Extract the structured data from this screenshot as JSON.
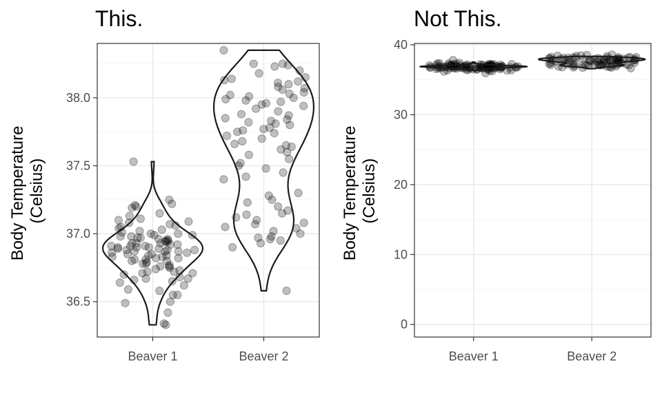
{
  "chart_data": [
    {
      "type": "violin",
      "title": "This.",
      "ylabel_lines": [
        "Body Temperature",
        "(Celsius)"
      ],
      "categories": [
        "Beaver 1",
        "Beaver 2"
      ],
      "ylim": [
        36.24,
        38.4
      ],
      "yticks": [
        36.5,
        37.0,
        37.5,
        38.0
      ],
      "ytick_labels": [
        "36.5",
        "37.0",
        "37.5",
        "38.0"
      ],
      "grid": true,
      "point_color": "#000000",
      "series": [
        {
          "values": [
            36.33,
            36.34,
            36.42,
            36.49,
            36.5,
            36.55,
            36.55,
            36.58,
            36.59,
            36.62,
            36.64,
            36.65,
            36.66,
            36.67,
            36.67,
            36.68,
            36.7,
            36.71,
            36.71,
            36.72,
            36.72,
            36.73,
            36.74,
            36.75,
            36.76,
            36.76,
            36.77,
            36.78,
            36.78,
            36.79,
            36.8,
            36.8,
            36.81,
            36.81,
            36.82,
            36.82,
            36.83,
            36.83,
            36.84,
            36.84,
            36.85,
            36.85,
            36.86,
            36.86,
            36.87,
            36.87,
            36.87,
            36.88,
            36.88,
            36.88,
            36.89,
            36.89,
            36.9,
            36.9,
            36.9,
            36.91,
            36.91,
            36.91,
            36.92,
            36.92,
            36.93,
            36.93,
            36.93,
            36.94,
            36.94,
            36.95,
            36.95,
            36.96,
            36.96,
            36.97,
            36.97,
            36.98,
            36.98,
            36.99,
            36.99,
            37.0,
            37.0,
            37.01,
            37.02,
            37.03,
            37.04,
            37.05,
            37.06,
            37.07,
            37.08,
            37.09,
            37.1,
            37.11,
            37.13,
            37.15,
            37.19,
            37.2,
            37.21,
            37.22,
            37.25,
            37.53
          ]
        },
        {
          "values": [
            36.58,
            36.9,
            36.93,
            36.95,
            36.96,
            36.97,
            36.98,
            37.0,
            37.02,
            37.04,
            37.05,
            37.07,
            37.08,
            37.1,
            37.12,
            37.14,
            37.15,
            37.17,
            37.2,
            37.23,
            37.25,
            37.28,
            37.3,
            37.4,
            37.42,
            37.45,
            37.48,
            37.5,
            37.52,
            37.55,
            37.58,
            37.6,
            37.62,
            37.64,
            37.65,
            37.66,
            37.68,
            37.7,
            37.72,
            37.74,
            37.75,
            37.76,
            37.77,
            37.78,
            37.8,
            37.81,
            37.82,
            37.83,
            37.84,
            37.85,
            37.87,
            37.88,
            37.9,
            37.92,
            37.94,
            37.95,
            37.96,
            37.97,
            37.98,
            37.99,
            38.0,
            38.01,
            38.02,
            38.03,
            38.04,
            38.06,
            38.07,
            38.08,
            38.1,
            38.11,
            38.12,
            38.13,
            38.14,
            38.15,
            38.18,
            38.2,
            38.23,
            38.24,
            38.25,
            38.25,
            38.35
          ]
        }
      ]
    },
    {
      "type": "violin",
      "title": "Not This.",
      "ylabel_lines": [
        "Body Temperature",
        "(Celsius)"
      ],
      "categories": [
        "Beaver 1",
        "Beaver 2"
      ],
      "ylim": [
        -1.8,
        40.2
      ],
      "yticks": [
        0,
        10,
        20,
        30,
        40
      ],
      "ytick_labels": [
        "0",
        "10",
        "20",
        "30",
        "40"
      ],
      "grid": true,
      "point_color": "#000000",
      "note": "same data as the first panel"
    }
  ]
}
